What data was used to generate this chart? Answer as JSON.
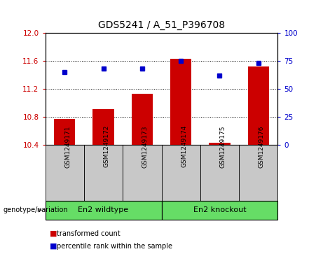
{
  "title": "GDS5241 / A_51_P396708",
  "categories": [
    "GSM1249171",
    "GSM1249172",
    "GSM1249173",
    "GSM1249174",
    "GSM1249175",
    "GSM1249176"
  ],
  "bar_values": [
    10.77,
    10.91,
    11.13,
    11.63,
    10.43,
    11.52
  ],
  "dot_values": [
    65,
    68,
    68,
    75,
    62,
    73
  ],
  "ylim_left": [
    10.4,
    12.0
  ],
  "ylim_right": [
    0,
    100
  ],
  "yticks_left": [
    10.4,
    10.8,
    11.2,
    11.6,
    12.0
  ],
  "yticks_right": [
    0,
    25,
    50,
    75,
    100
  ],
  "bar_color": "#cc0000",
  "dot_color": "#0000cc",
  "bar_baseline": 10.4,
  "group1_label": "En2 wildtype",
  "group2_label": "En2 knockout",
  "genotype_label": "genotype/variation",
  "legend_bar_label": "transformed count",
  "legend_dot_label": "percentile rank within the sample",
  "tick_color_left": "#cc0000",
  "tick_color_right": "#0000cc",
  "plot_bg": "#ffffff",
  "label_bg": "#c8c8c8",
  "group_bg": "#66dd66",
  "title_color": "#000000"
}
